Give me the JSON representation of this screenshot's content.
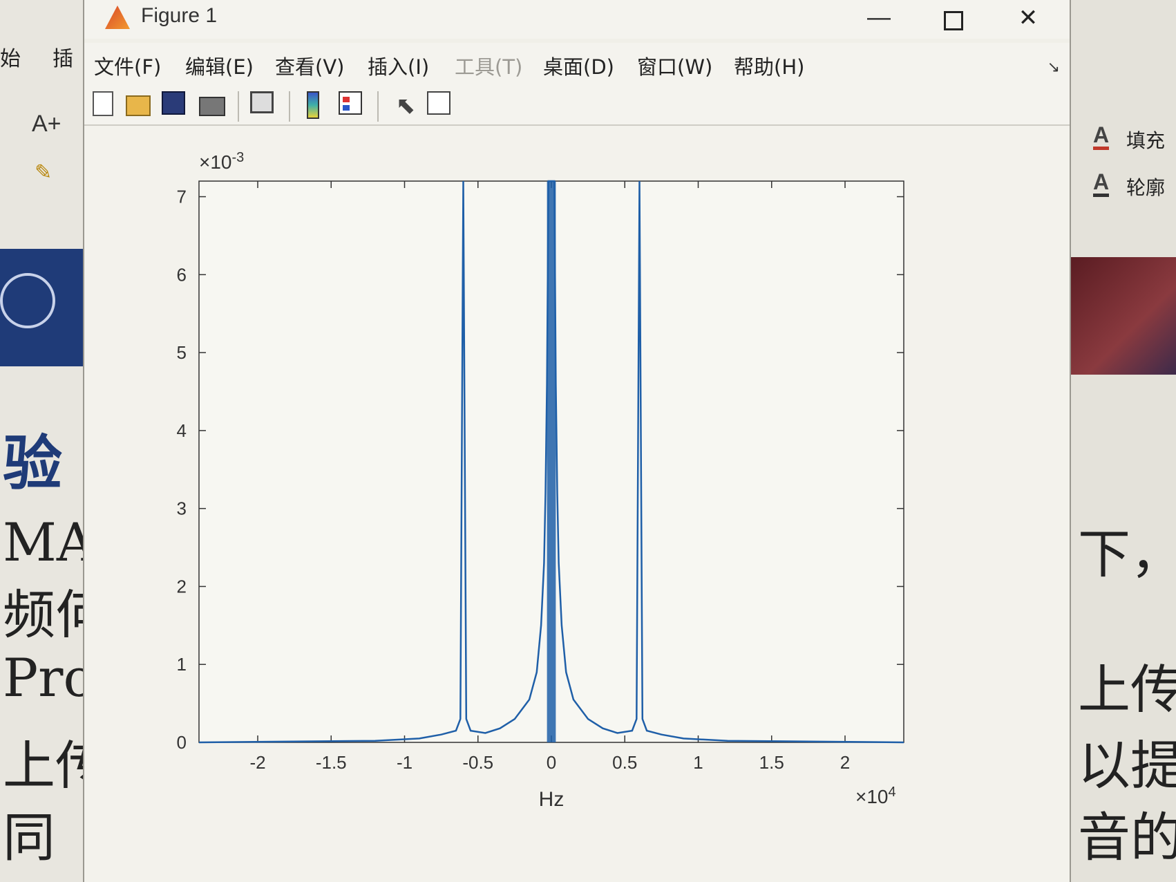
{
  "background_left": {
    "ribbon_tabs": [
      "始",
      "插"
    ],
    "fontsize_icon": "A+",
    "doc_lines": [
      "验",
      "MAT",
      "频何",
      "Pro",
      "上传",
      "同"
    ]
  },
  "background_right": {
    "fill_label": "填充",
    "outline_label": "轮廓",
    "doc_lines": [
      "下，",
      "上传",
      "以提",
      "音的"
    ]
  },
  "window": {
    "title": "Figure 1",
    "controls": {
      "minimize": "—",
      "close": "✕"
    }
  },
  "menubar": {
    "items": [
      {
        "label": "文件(F)",
        "enabled": true
      },
      {
        "label": "编辑(E)",
        "enabled": true
      },
      {
        "label": "查看(V)",
        "enabled": true
      },
      {
        "label": "插入(I)",
        "enabled": true
      },
      {
        "label": "工具(T)",
        "enabled": false
      },
      {
        "label": "桌面(D)",
        "enabled": true
      },
      {
        "label": "窗口(W)",
        "enabled": true
      },
      {
        "label": "帮助(H)",
        "enabled": true
      }
    ],
    "dock_arrow": "↘"
  },
  "toolbar": {
    "icons": [
      "new-figure-icon",
      "open-file-icon",
      "save-icon",
      "print-icon",
      "link-plot-icon",
      "colorbar-icon",
      "legend-icon",
      "edit-plot-icon",
      "property-inspector-icon"
    ]
  },
  "chart_data": {
    "type": "line",
    "title": "",
    "xlabel": "Hz",
    "ylabel": "",
    "x_multiplier": "×10",
    "x_multiplier_exp": "4",
    "y_multiplier": "×10",
    "y_multiplier_exp": "-3",
    "xlim": [
      -2.4,
      2.4
    ],
    "ylim": [
      0,
      7.2
    ],
    "xticks": [
      -2,
      -1.5,
      -1,
      -0.5,
      0,
      0.5,
      1,
      1.5,
      2
    ],
    "xtick_labels": [
      "-2",
      "-1.5",
      "-1",
      "-0.5",
      "0",
      "0.5",
      "1",
      "1.5",
      "2"
    ],
    "yticks": [
      0,
      1,
      2,
      3,
      4,
      5,
      6,
      7
    ],
    "ytick_labels": [
      "0",
      "1",
      "2",
      "3",
      "4",
      "5",
      "6",
      "7"
    ],
    "line_color": "#1f5fa8",
    "grid": false,
    "series": [
      {
        "x": [
          -2.4,
          -1.2,
          -0.9,
          -0.75,
          -0.65,
          -0.62,
          -0.6,
          -0.6,
          -0.58,
          -0.55,
          -0.45,
          -0.35,
          -0.25,
          -0.15,
          -0.1,
          -0.07,
          -0.05,
          -0.04,
          -0.03,
          -0.02,
          -0.01,
          0,
          0.01,
          0.02,
          0.03,
          0.04,
          0.05,
          0.07,
          0.1,
          0.15,
          0.25,
          0.35,
          0.45,
          0.55,
          0.58,
          0.6,
          0.6,
          0.62,
          0.65,
          0.75,
          0.9,
          1.2,
          2.4
        ],
        "y": [
          0,
          0.02,
          0.05,
          0.1,
          0.15,
          0.3,
          7.2,
          7.2,
          0.3,
          0.15,
          0.12,
          0.18,
          0.3,
          0.55,
          0.9,
          1.5,
          2.3,
          3.2,
          4.6,
          7.2,
          7.2,
          7.2,
          7.2,
          7.2,
          4.6,
          3.2,
          2.3,
          1.5,
          0.9,
          0.55,
          0.3,
          0.18,
          0.12,
          0.15,
          0.3,
          7.2,
          7.2,
          0.3,
          0.15,
          0.1,
          0.05,
          0.02,
          0
        ]
      }
    ]
  }
}
